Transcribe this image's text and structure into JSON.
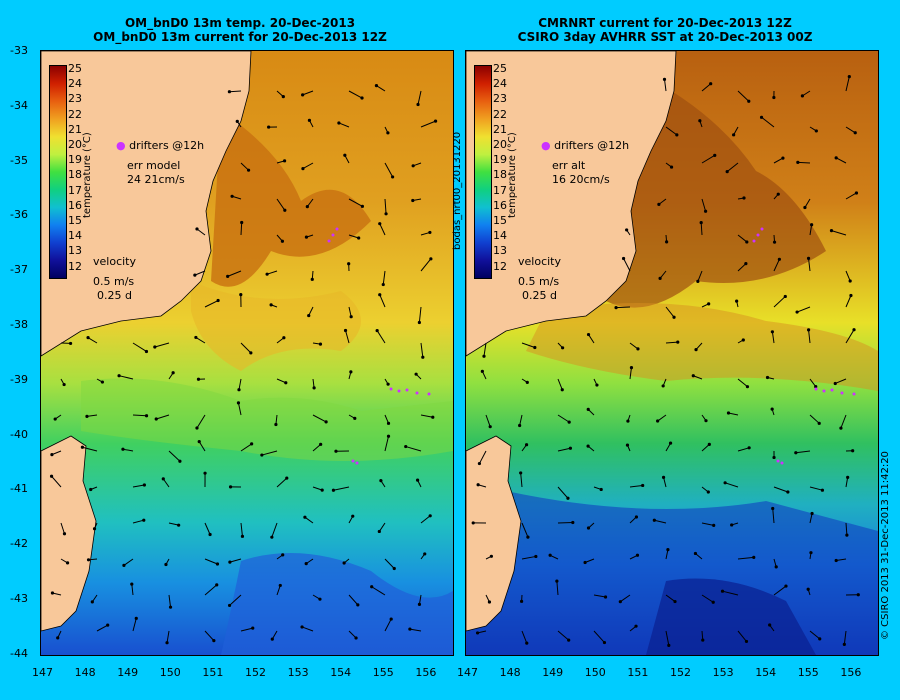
{
  "left_panel": {
    "title_line1": "OM_bnD0 13m temp. 20-Dec-2013",
    "title_line2": "OM_bnD0 13m current for 20-Dec-2013 12Z",
    "drifters_label": "drifters @12h",
    "err_line1": "err model",
    "err_line2": "24 21cm/s",
    "velocity_label": "velocity",
    "velocity_scale1": "0.5 m/s",
    "velocity_scale2": "0.25 d"
  },
  "right_panel": {
    "title_line1": "CMRNRT current for 20-Dec-2013 12Z",
    "title_line2": "CSIRO 3day AVHRR SST at 20-Dec-2013 00Z",
    "drifters_label": "drifters @12h",
    "err_line1": "err alt",
    "err_line2": "16 20cm/s",
    "velocity_label": "velocity",
    "velocity_scale1": "0.5 m/s",
    "velocity_scale2": "0.25 d"
  },
  "colorbar": {
    "label": "temperature (°C)",
    "ticks": [
      "25",
      "24",
      "23",
      "22",
      "21",
      "20",
      "19",
      "18",
      "17",
      "16",
      "15",
      "14",
      "13",
      "12"
    ]
  },
  "left_axis_lat_ticks": [
    "-33",
    "-34",
    "-35",
    "-36",
    "-37",
    "-38",
    "-39",
    "-40",
    "-41",
    "-42",
    "-43",
    "-44"
  ],
  "lon_ticks": [
    "147",
    "148",
    "149",
    "150",
    "151",
    "152",
    "153",
    "154",
    "155",
    "156"
  ],
  "side_label_middle": "bodas_nrt00_20131220",
  "side_label_right": "© CSIRO 2013  31-Dec-2013 11:42:20",
  "colors": {
    "background": "#00ccff",
    "land": "#f8c89a",
    "drifter": "#cc33ff"
  }
}
